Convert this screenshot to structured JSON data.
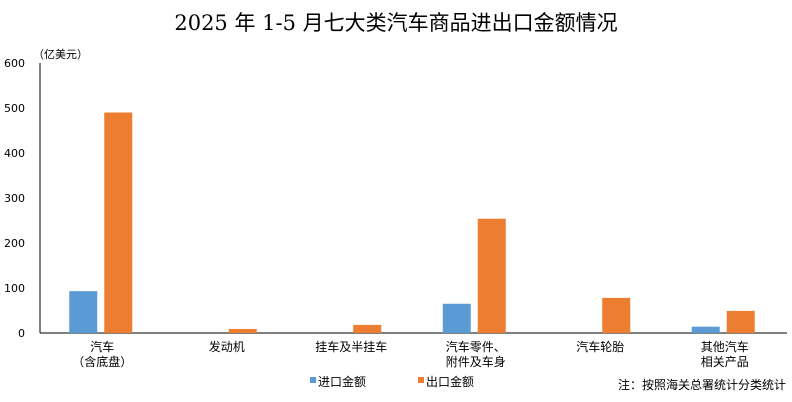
{
  "chart_data": {
    "type": "bar",
    "title": "2025 年 1-5 月七大类汽车商品进出口金额情况",
    "ylabel": "（亿美元）",
    "ylim": [
      0,
      600
    ],
    "yticks": [
      "0",
      "100",
      "200",
      "300",
      "400",
      "500",
      "600"
    ],
    "categories": [
      [
        "汽车",
        "（含底盘）"
      ],
      [
        "发动机"
      ],
      [
        "挂车及半挂车"
      ],
      [
        "汽车零件、",
        "附件及车身"
      ],
      [
        "汽车轮胎"
      ],
      [
        "其他汽车",
        "相关产品"
      ]
    ],
    "series": [
      {
        "name": "进口金额",
        "color": "#5B9BD5",
        "values": [
          93,
          0,
          0,
          65,
          0,
          14
        ]
      },
      {
        "name": "出口金额",
        "color": "#ED7D31",
        "values": [
          490,
          9,
          18,
          254,
          78,
          49
        ]
      }
    ],
    "grid": false,
    "legend": "bottom",
    "note": "注：按照海关总署统计分类统计"
  }
}
